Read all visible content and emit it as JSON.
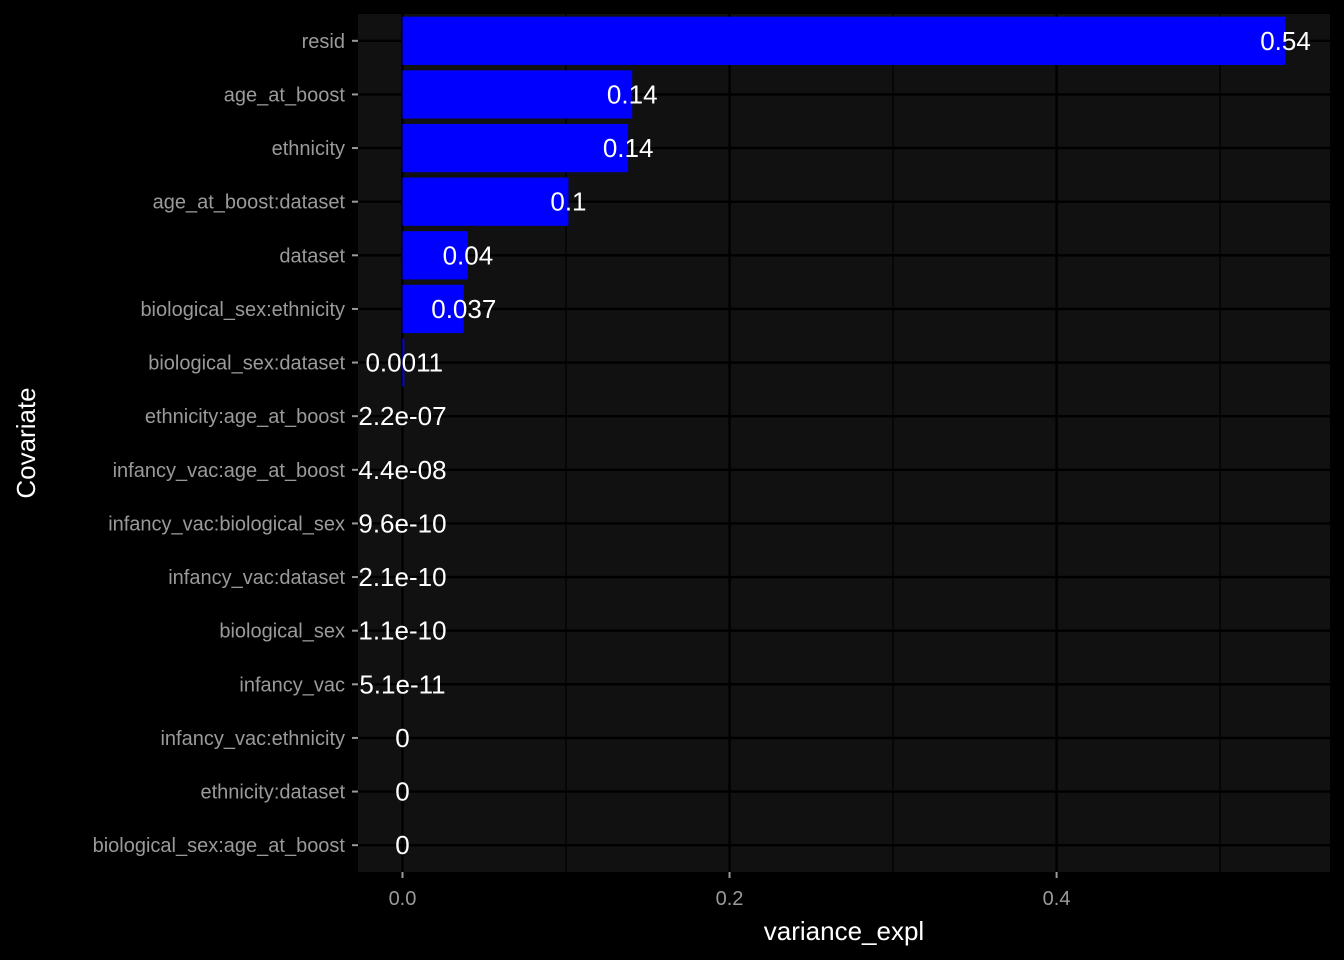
{
  "chart_data": {
    "type": "bar",
    "orientation": "horizontal",
    "xlabel": "variance_expl",
    "ylabel": "Covariate",
    "xlim": [
      -0.0272,
      0.5672
    ],
    "xticks": [
      0.0,
      0.2,
      0.4
    ],
    "xtick_labels": [
      "0.0",
      "0.2",
      "0.4"
    ],
    "grid": true,
    "bar_color": "#0000ff",
    "panel_color": "#111111",
    "grid_color": "#000000",
    "background_color": "#000000",
    "categories": [
      "resid",
      "age_at_boost",
      "ethnicity",
      "age_at_boost:dataset",
      "dataset",
      "biological_sex:ethnicity",
      "biological_sex:dataset",
      "ethnicity:age_at_boost",
      "infancy_vac:age_at_boost",
      "infancy_vac:biological_sex",
      "infancy_vac:dataset",
      "biological_sex",
      "infancy_vac",
      "infancy_vac:ethnicity",
      "ethnicity:dataset",
      "biological_sex:age_at_boost"
    ],
    "values": [
      0.54,
      0.1405,
      0.138,
      0.1015,
      0.04,
      0.0375,
      0.0011,
      2.2e-07,
      4.4e-08,
      9.6e-10,
      2.1e-10,
      1.1e-10,
      5.1e-11,
      0,
      0,
      0
    ],
    "value_labels": [
      "0.54",
      "0.14",
      "0.14",
      "0.1",
      "0.04",
      "0.037",
      "0.0011",
      "2.2e-07",
      "4.4e-08",
      "9.6e-10",
      "2.1e-10",
      "1.1e-10",
      "5.1e-11",
      "0",
      "0",
      "0"
    ]
  }
}
